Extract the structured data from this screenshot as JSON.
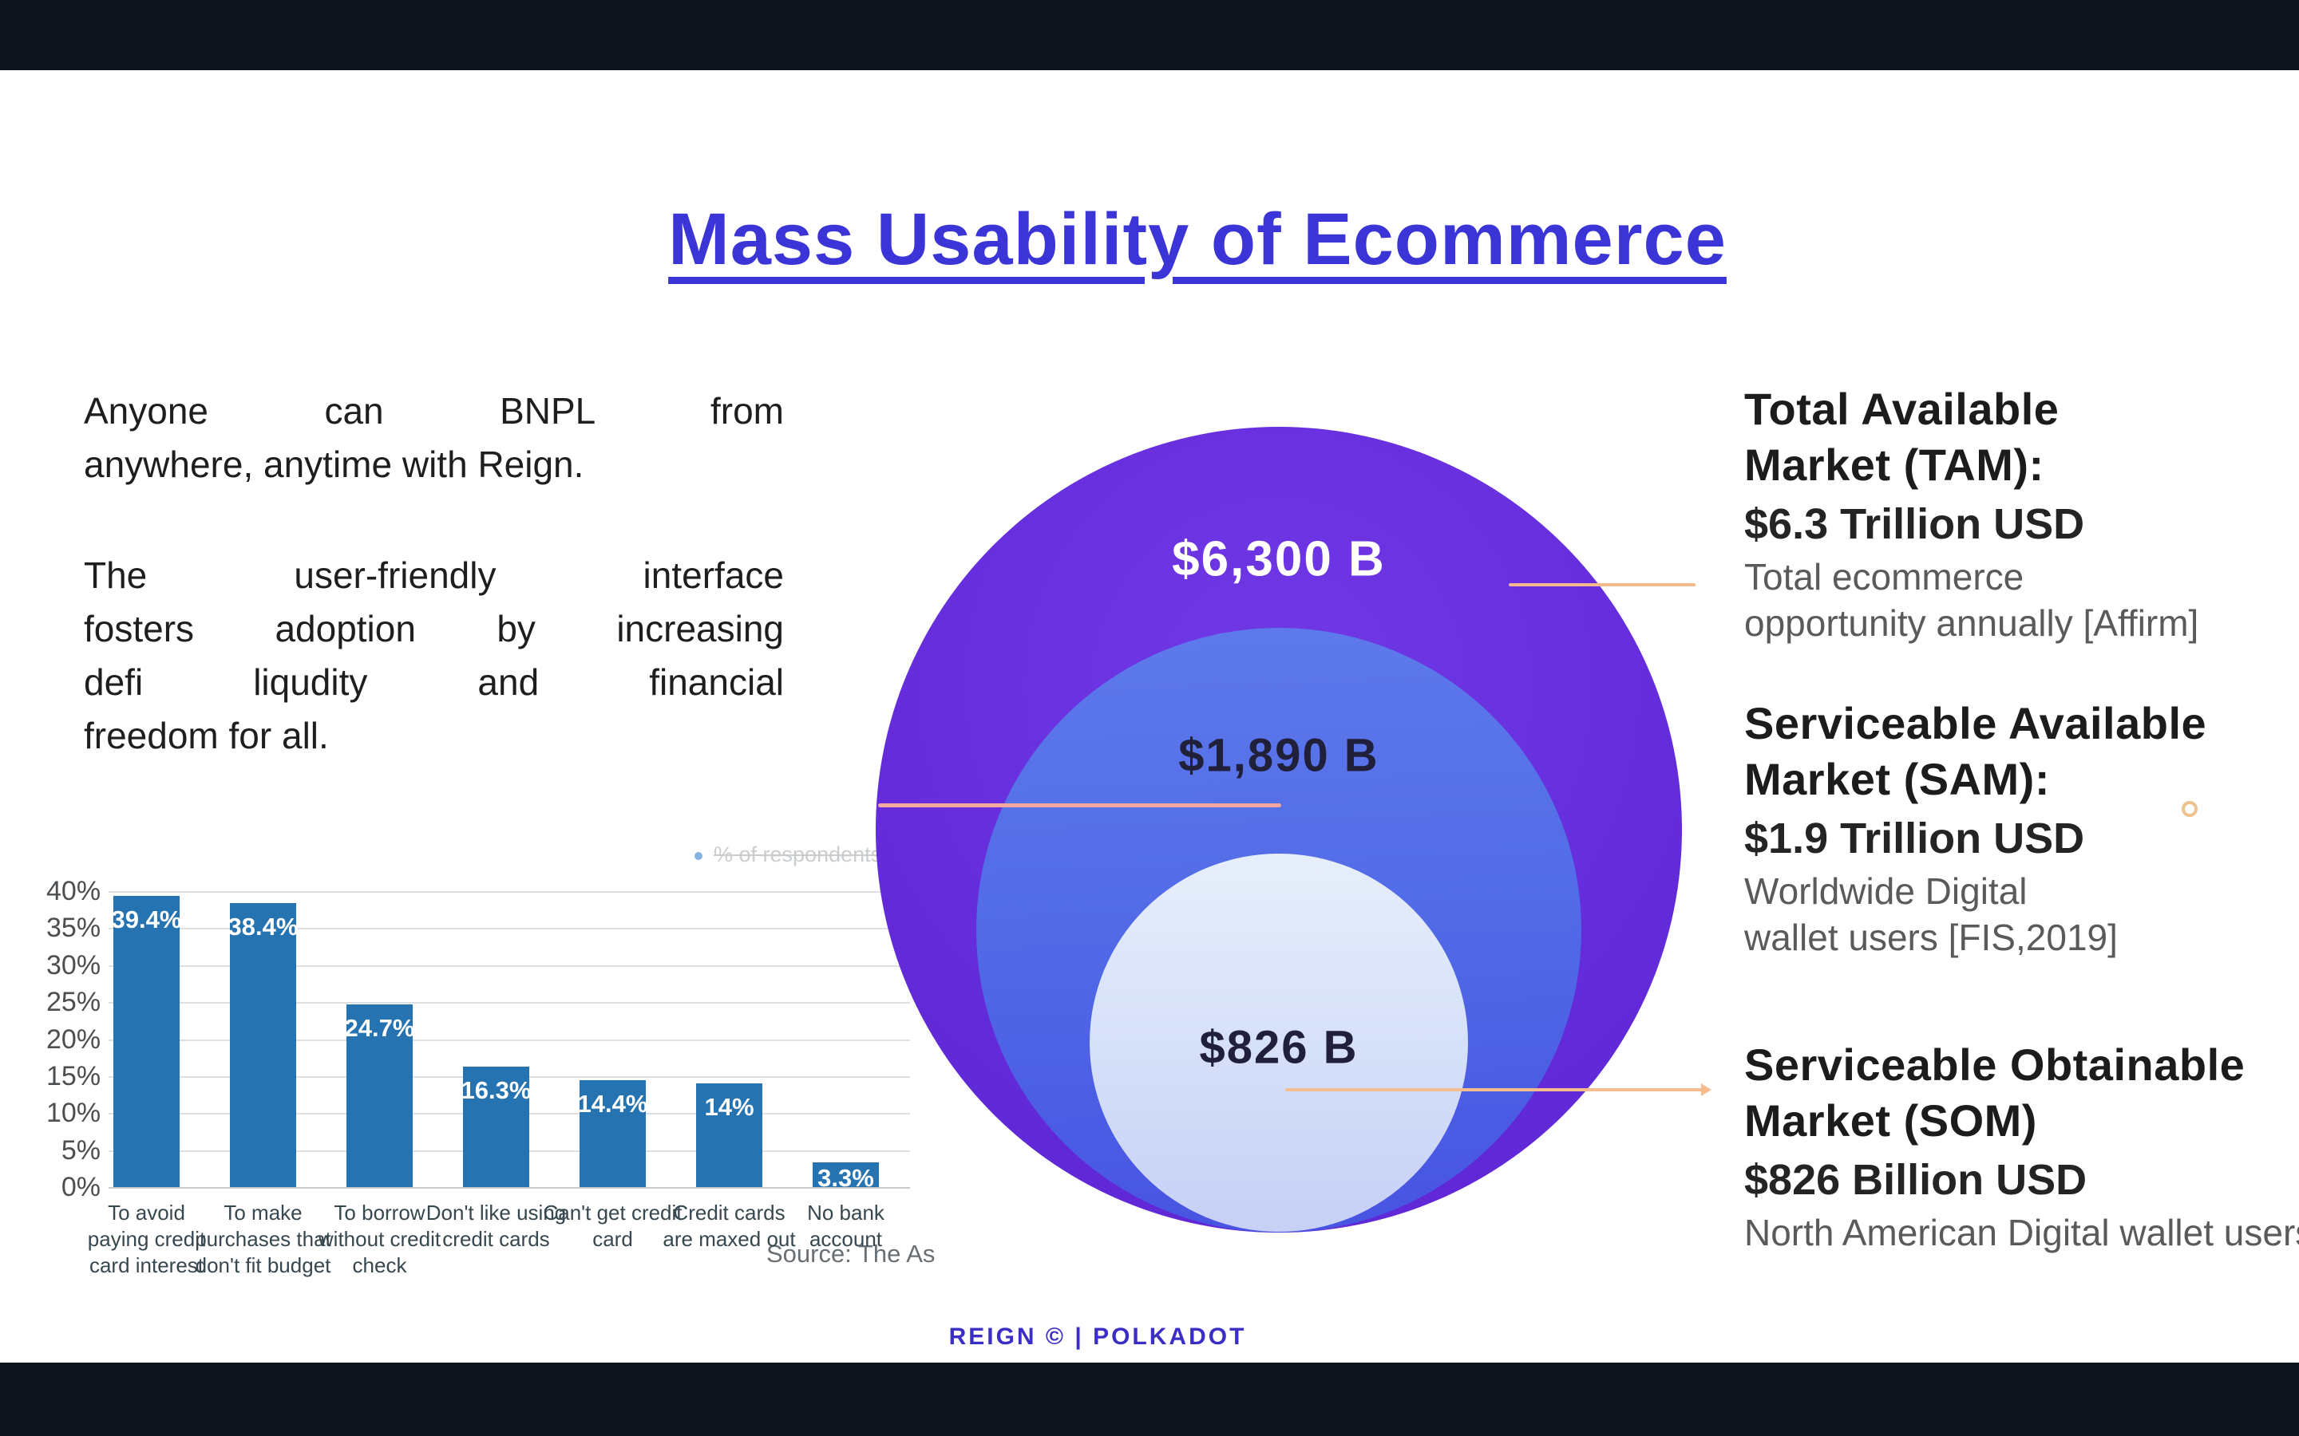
{
  "slide": {
    "title": "Mass Usability of Ecommerce",
    "footer": "REIGN © | POLKADOT"
  },
  "paragraphs": [
    {
      "lines": [
        "Anyone can BNPL from",
        "anywhere, anytime with Reign."
      ]
    },
    {
      "lines": [
        "The user-friendly interface",
        "fosters adoption by increasing",
        "defi liqudity and financial",
        "freedom for all."
      ]
    }
  ],
  "chart_data": {
    "type": "bar",
    "title": "",
    "xlabel": "",
    "ylabel": "",
    "ylim": [
      0,
      40
    ],
    "grid": true,
    "legend_position": "top-right",
    "legend_remnant": "% of respondents",
    "source": "Source: The As",
    "bar_color": "#2673b2",
    "y_ticks": [
      "40%",
      "35%",
      "30%",
      "25%",
      "20%",
      "15%",
      "10%",
      "5%",
      "0%"
    ],
    "categories": [
      "To avoid paying credit card interest",
      "To make purchases that don't fit budget",
      "To borrow without credit check",
      "Don't like using credit cards",
      "Can't get credit card",
      "Credit cards are maxed out",
      "No bank account"
    ],
    "categories_lines": [
      [
        "To avoid",
        "paying credit",
        "card interest"
      ],
      [
        "To make",
        "purchases that",
        "don't fit budget"
      ],
      [
        "To borrow",
        "without credit",
        "check"
      ],
      [
        "Don't like using",
        "credit cards"
      ],
      [
        "Can't get credit",
        "card"
      ],
      [
        "Credit cards",
        "are maxed out"
      ],
      [
        "No bank",
        "account"
      ]
    ],
    "values": [
      39.4,
      38.4,
      24.7,
      16.3,
      14.4,
      14,
      3.3
    ],
    "value_labels": [
      "39.4%",
      "38.4%",
      "24.7%",
      "16.3%",
      "14.4%",
      "14%",
      "3.3%"
    ]
  },
  "venn": {
    "circles": [
      {
        "name": "TAM",
        "label": "$6,300 B",
        "color_top": "#7139e6",
        "color_bottom": "#6129d8",
        "text_color": "#ffffff"
      },
      {
        "name": "SAM",
        "label": "$1,890 B",
        "color_top": "#5e7aeb",
        "color_bottom": "#4753e2",
        "text_color": "#20203a"
      },
      {
        "name": "SOM",
        "label": "$826 B",
        "color_top": "#e7eefb",
        "color_bottom": "#c7d0f5",
        "text_color": "#20203a"
      }
    ]
  },
  "market_blocks": [
    {
      "name": "tam",
      "heading_lines": [
        "Total Available",
        "Market (TAM):"
      ],
      "value": "$6.3 Trillion USD",
      "desc_lines": [
        "Total ecommerce",
        "opportunity annually [Affirm]"
      ]
    },
    {
      "name": "sam",
      "heading_lines": [
        "Serviceable Available",
        "Market (SAM):"
      ],
      "value": "$1.9 Trillion USD",
      "desc_lines": [
        "Worldwide Digital",
        "wallet users [FIS,2019]"
      ]
    },
    {
      "name": "som",
      "heading_lines": [
        "Serviceable Obtainable",
        "Market (SOM)"
      ],
      "value": "$826 Billion USD",
      "desc_lines": [
        "North American Digital wallet users"
      ]
    }
  ],
  "colors": {
    "title_blue": "#3b34d6",
    "footer_indigo": "#3a2ec5",
    "letterbox": "#0f131b",
    "bar_blue": "#2673b2",
    "tam_purple": "#6a2fe0",
    "sam_blue": "#5570e8",
    "som_light": "#d9e3f9",
    "connector_orange": "#f5bd8e",
    "connector_pink": "#f2a89d",
    "ring_orange": "#eec28f"
  }
}
